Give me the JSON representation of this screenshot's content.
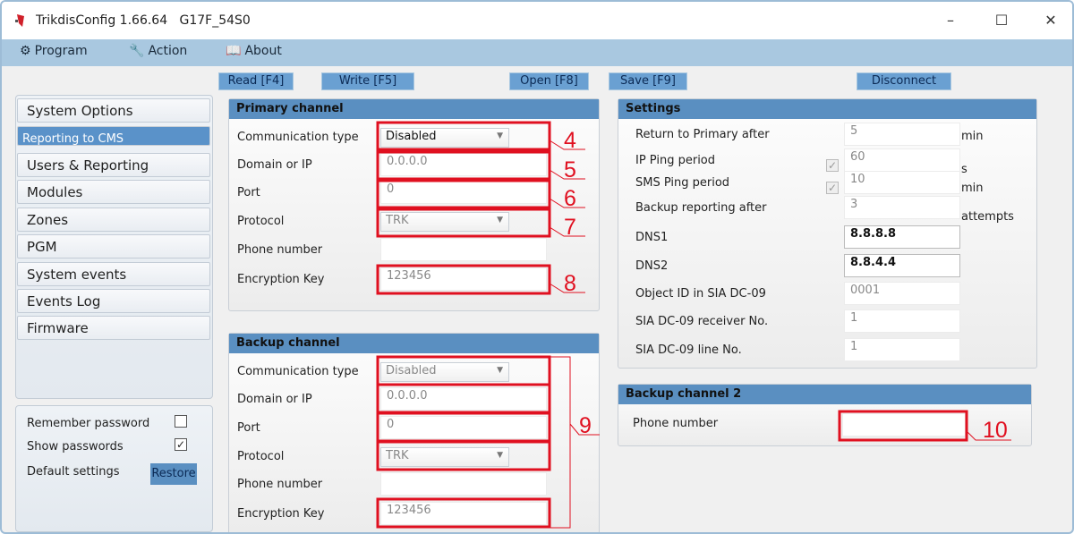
{
  "window": {
    "title": "TrikdisConfig 1.66.64",
    "device": "G17F_54S0",
    "minimize": "–",
    "maximize": "☐",
    "close": "✕"
  },
  "menu": [
    {
      "label": "Program",
      "icon": "gear-icon"
    },
    {
      "label": "Action",
      "icon": "wrench-icon"
    },
    {
      "label": "About",
      "icon": "book-icon"
    }
  ],
  "toolbar": {
    "read": "Read [F4]",
    "write": "Write [F5]",
    "open": "Open [F8]",
    "save": "Save [F9]",
    "disconnect": "Disconnect"
  },
  "sidebar": {
    "items": [
      "System Options",
      "Reporting to CMS",
      "Users & Reporting",
      "Modules",
      "Zones",
      "PGM",
      "System events",
      "Events Log",
      "Firmware"
    ],
    "selected": "Reporting to CMS"
  },
  "options": {
    "remember_password": "Remember password",
    "remember_checked": false,
    "show_passwords": "Show passwords",
    "show_checked": true,
    "default_settings": "Default settings",
    "restore": "Restore"
  },
  "primary": {
    "title": "Primary channel",
    "rows": [
      {
        "label": "Communication type",
        "value": "Disabled",
        "type": "select",
        "enabled": true
      },
      {
        "label": "Domain or IP",
        "value": "0.0.0.0",
        "type": "input"
      },
      {
        "label": "Port",
        "value": "0",
        "type": "input"
      },
      {
        "label": "Protocol",
        "value": "TRK",
        "type": "select",
        "enabled": false
      },
      {
        "label": "Phone number",
        "value": "",
        "type": "input"
      },
      {
        "label": "Encryption Key",
        "value": "123456",
        "type": "input"
      }
    ]
  },
  "backup": {
    "title": "Backup channel",
    "rows": [
      {
        "label": "Communication type",
        "value": "Disabled",
        "type": "select",
        "enabled": false
      },
      {
        "label": "Domain or IP",
        "value": "0.0.0.0",
        "type": "input"
      },
      {
        "label": "Port",
        "value": "0",
        "type": "input"
      },
      {
        "label": "Protocol",
        "value": "TRK",
        "type": "select",
        "enabled": false
      },
      {
        "label": "Phone number",
        "value": "",
        "type": "input"
      },
      {
        "label": "Encryption Key",
        "value": "123456",
        "type": "input"
      }
    ]
  },
  "settings": {
    "title": "Settings",
    "rows": [
      {
        "label": "Return to Primary after",
        "value": "5",
        "unit": "min"
      },
      {
        "label": "IP Ping period",
        "value": "60",
        "unit": "s",
        "checkbox": true
      },
      {
        "label": "SMS Ping period",
        "value": "10",
        "unit": "min",
        "checkbox": true
      },
      {
        "label": "Backup reporting after",
        "value": "3",
        "unit": "attempts"
      },
      {
        "label": "DNS1",
        "value": "8.8.8.8",
        "editable": true
      },
      {
        "label": "DNS2",
        "value": "8.8.4.4",
        "editable": true
      },
      {
        "label": "Object ID in SIA DC-09",
        "value": "0001"
      },
      {
        "label": "SIA DC-09 receiver No.",
        "value": "1"
      },
      {
        "label": "SIA DC-09 line No.",
        "value": "1"
      }
    ]
  },
  "backup2": {
    "title": "Backup channel 2",
    "phone_label": "Phone number",
    "phone_value": ""
  },
  "annotations": [
    "4",
    "5",
    "6",
    "7",
    "8",
    "9",
    "10"
  ],
  "colors": {
    "annotation": "#e01020",
    "accent": "#5a92c9"
  }
}
